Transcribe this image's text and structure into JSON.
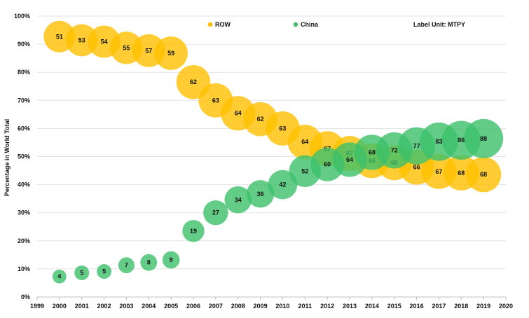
{
  "chart_data": {
    "type": "bubble",
    "title": "",
    "xlabel": "",
    "ylabel": "Percentage in World Total",
    "xlim": [
      1999,
      2020
    ],
    "ylim": [
      0,
      100
    ],
    "x_ticks": [
      1999,
      2000,
      2001,
      2002,
      2003,
      2004,
      2005,
      2006,
      2007,
      2008,
      2009,
      2010,
      2011,
      2012,
      2013,
      2014,
      2015,
      2016,
      2017,
      2018,
      2019,
      2020
    ],
    "y_ticks": [
      0,
      10,
      20,
      30,
      40,
      50,
      60,
      70,
      80,
      90,
      100
    ],
    "y_tick_labels": [
      "0%",
      "10%",
      "20%",
      "30%",
      "40%",
      "50%",
      "60%",
      "70%",
      "80%",
      "90%",
      "100%"
    ],
    "annotation": "Label Unit: MTPY",
    "legend_position": "top",
    "series": [
      {
        "name": "ROW",
        "color": "#FFC000",
        "x": [
          2000,
          2001,
          2002,
          2003,
          2004,
          2005,
          2006,
          2007,
          2008,
          2009,
          2010,
          2011,
          2012,
          2013,
          2014,
          2015,
          2016,
          2017,
          2018,
          2019
        ],
        "y": [
          92.7,
          91.4,
          90.9,
          88.7,
          87.7,
          86.8,
          76.5,
          70.0,
          65.4,
          63.3,
          60.0,
          55.2,
          52.8,
          51.1,
          48.5,
          47.8,
          46.2,
          44.7,
          44.2,
          43.6
        ],
        "labels": [
          51,
          53,
          54,
          55,
          57,
          59,
          62,
          63,
          64,
          62,
          63,
          64,
          67,
          67,
          66,
          66,
          66,
          67,
          68,
          68
        ]
      },
      {
        "name": "China",
        "color": "#3CC06A",
        "x": [
          2000,
          2001,
          2002,
          2003,
          2004,
          2005,
          2006,
          2007,
          2008,
          2009,
          2010,
          2011,
          2012,
          2013,
          2014,
          2015,
          2016,
          2017,
          2018,
          2019
        ],
        "y": [
          7.3,
          8.6,
          9.1,
          11.3,
          12.3,
          13.2,
          23.5,
          30.0,
          34.6,
          36.7,
          40.0,
          44.8,
          47.2,
          48.9,
          51.5,
          52.2,
          53.8,
          55.3,
          55.8,
          56.4
        ],
        "labels": [
          4,
          5,
          5,
          7,
          8,
          9,
          19,
          27,
          34,
          36,
          42,
          52,
          60,
          64,
          68,
          72,
          77,
          83,
          86,
          88
        ]
      }
    ]
  }
}
